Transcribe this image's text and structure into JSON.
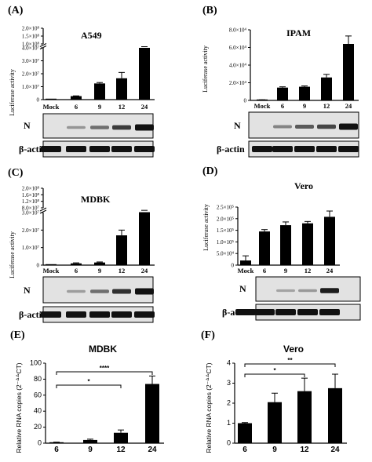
{
  "figure": {
    "panels": [
      {
        "letter": "(A)",
        "title": "A549",
        "ylabel": "Luciferase activity",
        "band_label_top": "N",
        "band_label_bottom": "β-actin"
      },
      {
        "letter": "(B)",
        "title": "IPAM",
        "ylabel": "Luciferase activity",
        "band_label_top": "N",
        "band_label_bottom": "β-actin"
      },
      {
        "letter": "(C)",
        "title": "MDBK",
        "ylabel": "Luciferase activity",
        "band_label_top": "N",
        "band_label_bottom": "β-actin"
      },
      {
        "letter": "(D)",
        "title": "Vero",
        "ylabel": "Luciferase activity",
        "band_label_top": "N",
        "band_label_bottom": "β-actin"
      },
      {
        "letter": "(E)",
        "title": "MDBK",
        "ylabel": "Relative RNA copies (2⁻ᐞᐞCT)"
      },
      {
        "letter": "(F)",
        "title": "Vero",
        "ylabel": "Relative RNA copies (2⁻ᐞᐞCT)"
      }
    ],
    "significance": {
      "E": [
        {
          "label": "****",
          "from": "6",
          "to": "24"
        },
        {
          "label": "*",
          "from": "6",
          "to": "12"
        }
      ],
      "F": [
        {
          "label": "**",
          "from": "6",
          "to": "24"
        },
        {
          "label": "*",
          "from": "6",
          "to": "12"
        }
      ]
    },
    "blot_colors": {
      "background": "#e2e2e2",
      "band": "#111111",
      "border": "#000000"
    }
  },
  "chart_data": [
    {
      "panel": "A",
      "type": "bar",
      "categories": [
        "Mock",
        "6",
        "9",
        "12",
        "24"
      ],
      "values": [
        0.0,
        2700000,
        12500000,
        16500000,
        58000000
      ],
      "errors": [
        0,
        200000,
        700000,
        4500000,
        4000000
      ],
      "title": "A549",
      "xlabel": "",
      "ylabel": "Luciferase activity",
      "yticks": [
        "0",
        "1.0×10⁷",
        "2.0×10⁷",
        "3.0×10⁷",
        "4.0×10⁷",
        "1.0×10⁸",
        "1.5×10⁸",
        "2.0×10⁸"
      ],
      "axis_break": true
    },
    {
      "panel": "B",
      "type": "bar",
      "categories": [
        "Mock",
        "6",
        "9",
        "12",
        "24"
      ],
      "values": [
        500,
        14500,
        15500,
        26000,
        64000
      ],
      "errors": [
        200,
        900,
        900,
        3500,
        9000
      ],
      "title": "IPAM",
      "xlabel": "",
      "ylabel": "Luciferase activity",
      "yticks": [
        "0",
        "2.0×10⁴",
        "4.0×10⁴",
        "6.0×10⁴",
        "8.0×10⁴"
      ],
      "ylim": [
        0,
        80000
      ]
    },
    {
      "panel": "C",
      "type": "bar",
      "categories": [
        "Mock",
        "6",
        "9",
        "12",
        "24"
      ],
      "values": [
        0.0,
        1000000,
        1500000,
        17000000,
        62000000
      ],
      "errors": [
        0,
        300000,
        300000,
        3000000,
        3500000
      ],
      "title": "MDBK",
      "xlabel": "",
      "ylabel": "Luciferase activity",
      "yticks": [
        "0",
        "1.0×10⁷",
        "2.0×10⁷",
        "3.0×10⁷",
        "8.0×10⁷",
        "1.2×10⁸",
        "1.6×10⁸",
        "2.0×10⁸"
      ],
      "axis_break": true
    },
    {
      "panel": "D",
      "type": "bar",
      "categories": [
        "Mock",
        "6",
        "9",
        "12",
        "24"
      ],
      "values": [
        20000,
        145000,
        172000,
        180000,
        208000
      ],
      "errors": [
        20000,
        8000,
        14000,
        8000,
        25000
      ],
      "title": "Vero",
      "xlabel": "",
      "ylabel": "Luciferase activity",
      "yticks": [
        "0",
        "5.0×10⁴",
        "1.0×10⁵",
        "1.5×10⁵",
        "2.0×10⁵",
        "2.5×10⁵"
      ],
      "ylim": [
        0,
        250000
      ]
    },
    {
      "panel": "E",
      "type": "bar",
      "categories": [
        "6",
        "9",
        "12",
        "24"
      ],
      "values": [
        1,
        4,
        13,
        74
      ],
      "errors": [
        0.3,
        1,
        3.5,
        10
      ],
      "title": "MDBK",
      "xlabel": "",
      "ylabel": "Relative RNA copies (2⁻ᐞᐞCT)",
      "yticks": [
        "0",
        "20",
        "40",
        "60",
        "80",
        "100"
      ],
      "ylim": [
        0,
        100
      ]
    },
    {
      "panel": "F",
      "type": "bar",
      "categories": [
        "6",
        "9",
        "12",
        "24"
      ],
      "values": [
        1.0,
        2.05,
        2.6,
        2.75
      ],
      "errors": [
        0.03,
        0.45,
        0.65,
        0.7
      ],
      "title": "Vero",
      "xlabel": "",
      "ylabel": "Relative RNA copies (2⁻ᐞᐞCT)",
      "yticks": [
        "0",
        "1",
        "2",
        "3",
        "4"
      ],
      "ylim": [
        0,
        4
      ]
    }
  ]
}
